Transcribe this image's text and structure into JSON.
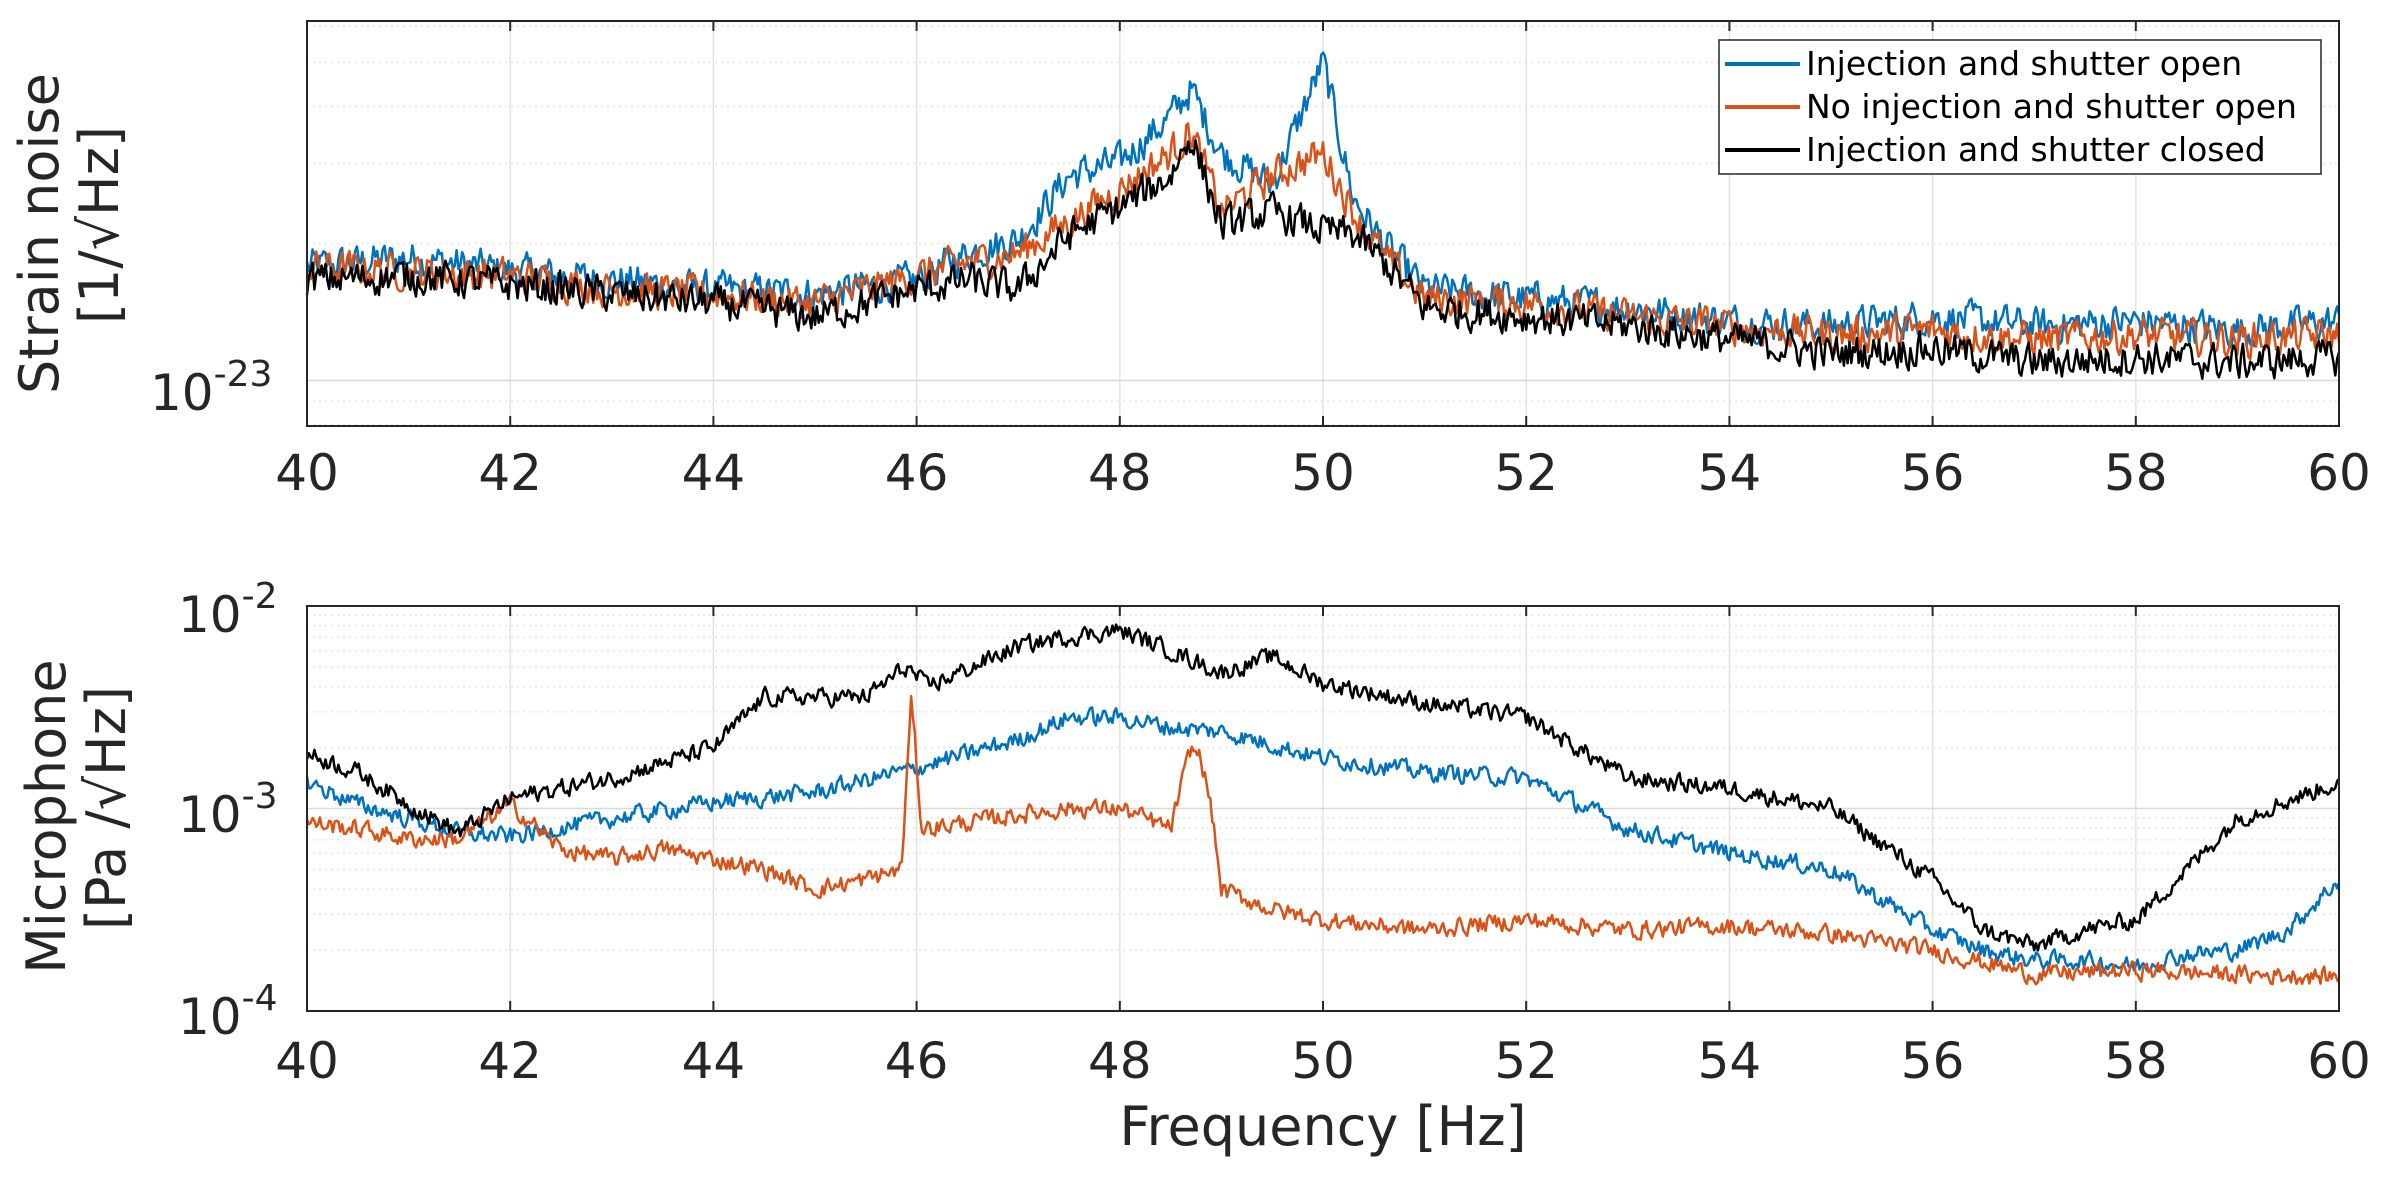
{
  "chart_data": [
    {
      "type": "line",
      "ylabel_line1": "Strain noise",
      "ylabel_line2": "[1/√Hz]",
      "xlabel": "",
      "xlim": [
        40,
        60
      ],
      "ylim_log10": [
        -23.1,
        -22.21
      ],
      "yscale": "log",
      "xticks": [
        "40",
        "42",
        "44",
        "46",
        "48",
        "50",
        "52",
        "54",
        "56",
        "58",
        "60"
      ],
      "ytick_base": "10",
      "ytick_exp": "-23",
      "legend": {
        "position": "top-right",
        "entries": [
          {
            "label": "Injection and shutter open",
            "color": "#0072BD"
          },
          {
            "label": "No injection and shutter open",
            "color": "#D95319"
          },
          {
            "label": "Injection and shutter closed",
            "color": "#000000"
          }
        ]
      },
      "series": [
        {
          "name": "Injection and shutter open",
          "color": "#0072BD",
          "x": [
            40,
            41,
            42,
            43,
            44,
            45,
            46,
            46.5,
            47,
            47.5,
            48,
            48.5,
            48.7,
            49,
            49.5,
            50,
            50.3,
            50.6,
            51,
            52,
            53,
            54,
            55,
            56,
            57,
            58,
            59,
            60
          ],
          "log10y": [
            -22.75,
            -22.73,
            -22.76,
            -22.78,
            -22.8,
            -22.81,
            -22.78,
            -22.72,
            -22.69,
            -22.55,
            -22.52,
            -22.42,
            -22.36,
            -22.5,
            -22.57,
            -22.3,
            -22.6,
            -22.7,
            -22.8,
            -22.82,
            -22.84,
            -22.87,
            -22.88,
            -22.86,
            -22.88,
            -22.87,
            -22.89,
            -22.87
          ]
        },
        {
          "name": "No injection and shutter open",
          "color": "#D95319",
          "x": [
            40,
            41,
            42,
            43,
            44,
            45,
            46,
            46.5,
            47,
            47.5,
            48,
            48.5,
            48.7,
            49,
            49.5,
            50,
            50.3,
            50.6,
            51,
            52,
            53,
            54,
            55,
            56,
            57,
            58,
            59,
            60
          ],
          "log10y": [
            -22.75,
            -22.76,
            -22.77,
            -22.8,
            -22.81,
            -22.83,
            -22.77,
            -22.74,
            -22.72,
            -22.65,
            -22.58,
            -22.5,
            -22.45,
            -22.63,
            -22.55,
            -22.5,
            -22.63,
            -22.73,
            -22.82,
            -22.83,
            -22.86,
            -22.88,
            -22.9,
            -22.89,
            -22.91,
            -22.9,
            -22.91,
            -22.9
          ]
        },
        {
          "name": "Injection and shutter closed",
          "color": "#000000",
          "x": [
            40,
            41,
            42,
            43,
            44,
            45,
            46,
            46.5,
            47,
            47.5,
            48,
            48.5,
            48.7,
            49,
            49.5,
            50,
            50.3,
            50.6,
            51,
            52,
            53,
            54,
            55,
            56,
            57,
            58,
            59,
            60
          ],
          "log10y": [
            -22.78,
            -22.77,
            -22.79,
            -22.81,
            -22.83,
            -22.86,
            -22.8,
            -22.78,
            -22.8,
            -22.68,
            -22.62,
            -22.55,
            -22.46,
            -22.66,
            -22.63,
            -22.67,
            -22.68,
            -22.74,
            -22.84,
            -22.86,
            -22.88,
            -22.91,
            -22.94,
            -22.93,
            -22.96,
            -22.95,
            -22.96,
            -22.95
          ]
        }
      ]
    },
    {
      "type": "line",
      "ylabel_line1": "Microphone",
      "ylabel_line2": "[Pa /√Hz]",
      "xlabel": "Frequency [Hz]",
      "xlim": [
        40,
        60
      ],
      "ylim_log10": [
        -4,
        -2
      ],
      "yscale": "log",
      "xticks": [
        "40",
        "42",
        "44",
        "46",
        "48",
        "50",
        "52",
        "54",
        "56",
        "58",
        "60"
      ],
      "yticks": [
        {
          "base": "10",
          "exp": "-2",
          "log10": -2
        },
        {
          "base": "10",
          "exp": "-3",
          "log10": -3
        },
        {
          "base": "10",
          "exp": "-4",
          "log10": -4
        }
      ],
      "series": [
        {
          "name": "Injection and shutter open",
          "color": "#0072BD",
          "x": [
            40,
            40.5,
            41,
            41.5,
            42,
            43,
            44,
            45,
            46,
            47,
            47.5,
            48,
            48.5,
            49,
            50,
            51,
            52,
            53,
            54,
            55,
            56,
            56.5,
            57,
            57.5,
            58,
            58.5,
            59,
            59.5,
            60
          ],
          "log10y": [
            -2.87,
            -2.98,
            -3.05,
            -3.12,
            -3.14,
            -3.05,
            -2.97,
            -2.92,
            -2.8,
            -2.66,
            -2.55,
            -2.55,
            -2.6,
            -2.62,
            -2.75,
            -2.82,
            -2.85,
            -3.1,
            -3.22,
            -3.3,
            -3.6,
            -3.7,
            -3.75,
            -3.75,
            -3.78,
            -3.72,
            -3.7,
            -3.6,
            -3.35
          ]
        },
        {
          "name": "No injection and shutter open",
          "color": "#D95319",
          "x": [
            40,
            40.5,
            41,
            41.5,
            42,
            42.5,
            43,
            43.5,
            44,
            44.5,
            45,
            45.5,
            45.85,
            45.95,
            46.05,
            46.5,
            47,
            47.5,
            48,
            48.5,
            48.7,
            48.8,
            48.9,
            49,
            49.5,
            50,
            51,
            52,
            53,
            54,
            55,
            56,
            57,
            58,
            59,
            60
          ],
          "log10y": [
            -3.07,
            -3.1,
            -3.15,
            -3.15,
            -2.98,
            -3.2,
            -3.25,
            -3.2,
            -3.25,
            -3.3,
            -3.4,
            -3.35,
            -3.3,
            -2.45,
            -3.1,
            -3.07,
            -3.03,
            -3.0,
            -3.0,
            -3.1,
            -2.7,
            -2.75,
            -3.0,
            -3.4,
            -3.5,
            -3.55,
            -3.6,
            -3.55,
            -3.6,
            -3.58,
            -3.62,
            -3.7,
            -3.82,
            -3.8,
            -3.82,
            -3.83
          ]
        },
        {
          "name": "Injection and shutter closed",
          "color": "#000000",
          "x": [
            40,
            40.5,
            41,
            41.5,
            42,
            43,
            44,
            44.5,
            45,
            45.5,
            45.9,
            46.1,
            47,
            47.5,
            48,
            48.5,
            49,
            49.5,
            50,
            51,
            52,
            53,
            54,
            55,
            56,
            56.5,
            57,
            57.5,
            58,
            59,
            60
          ],
          "log10y": [
            -2.73,
            -2.82,
            -2.98,
            -3.12,
            -2.95,
            -2.85,
            -2.7,
            -2.45,
            -2.45,
            -2.45,
            -2.3,
            -2.4,
            -2.2,
            -2.15,
            -2.12,
            -2.22,
            -2.33,
            -2.25,
            -2.38,
            -2.48,
            -2.55,
            -2.85,
            -2.9,
            -3.0,
            -3.35,
            -3.6,
            -3.68,
            -3.6,
            -3.55,
            -3.05,
            -2.87
          ]
        }
      ]
    }
  ]
}
